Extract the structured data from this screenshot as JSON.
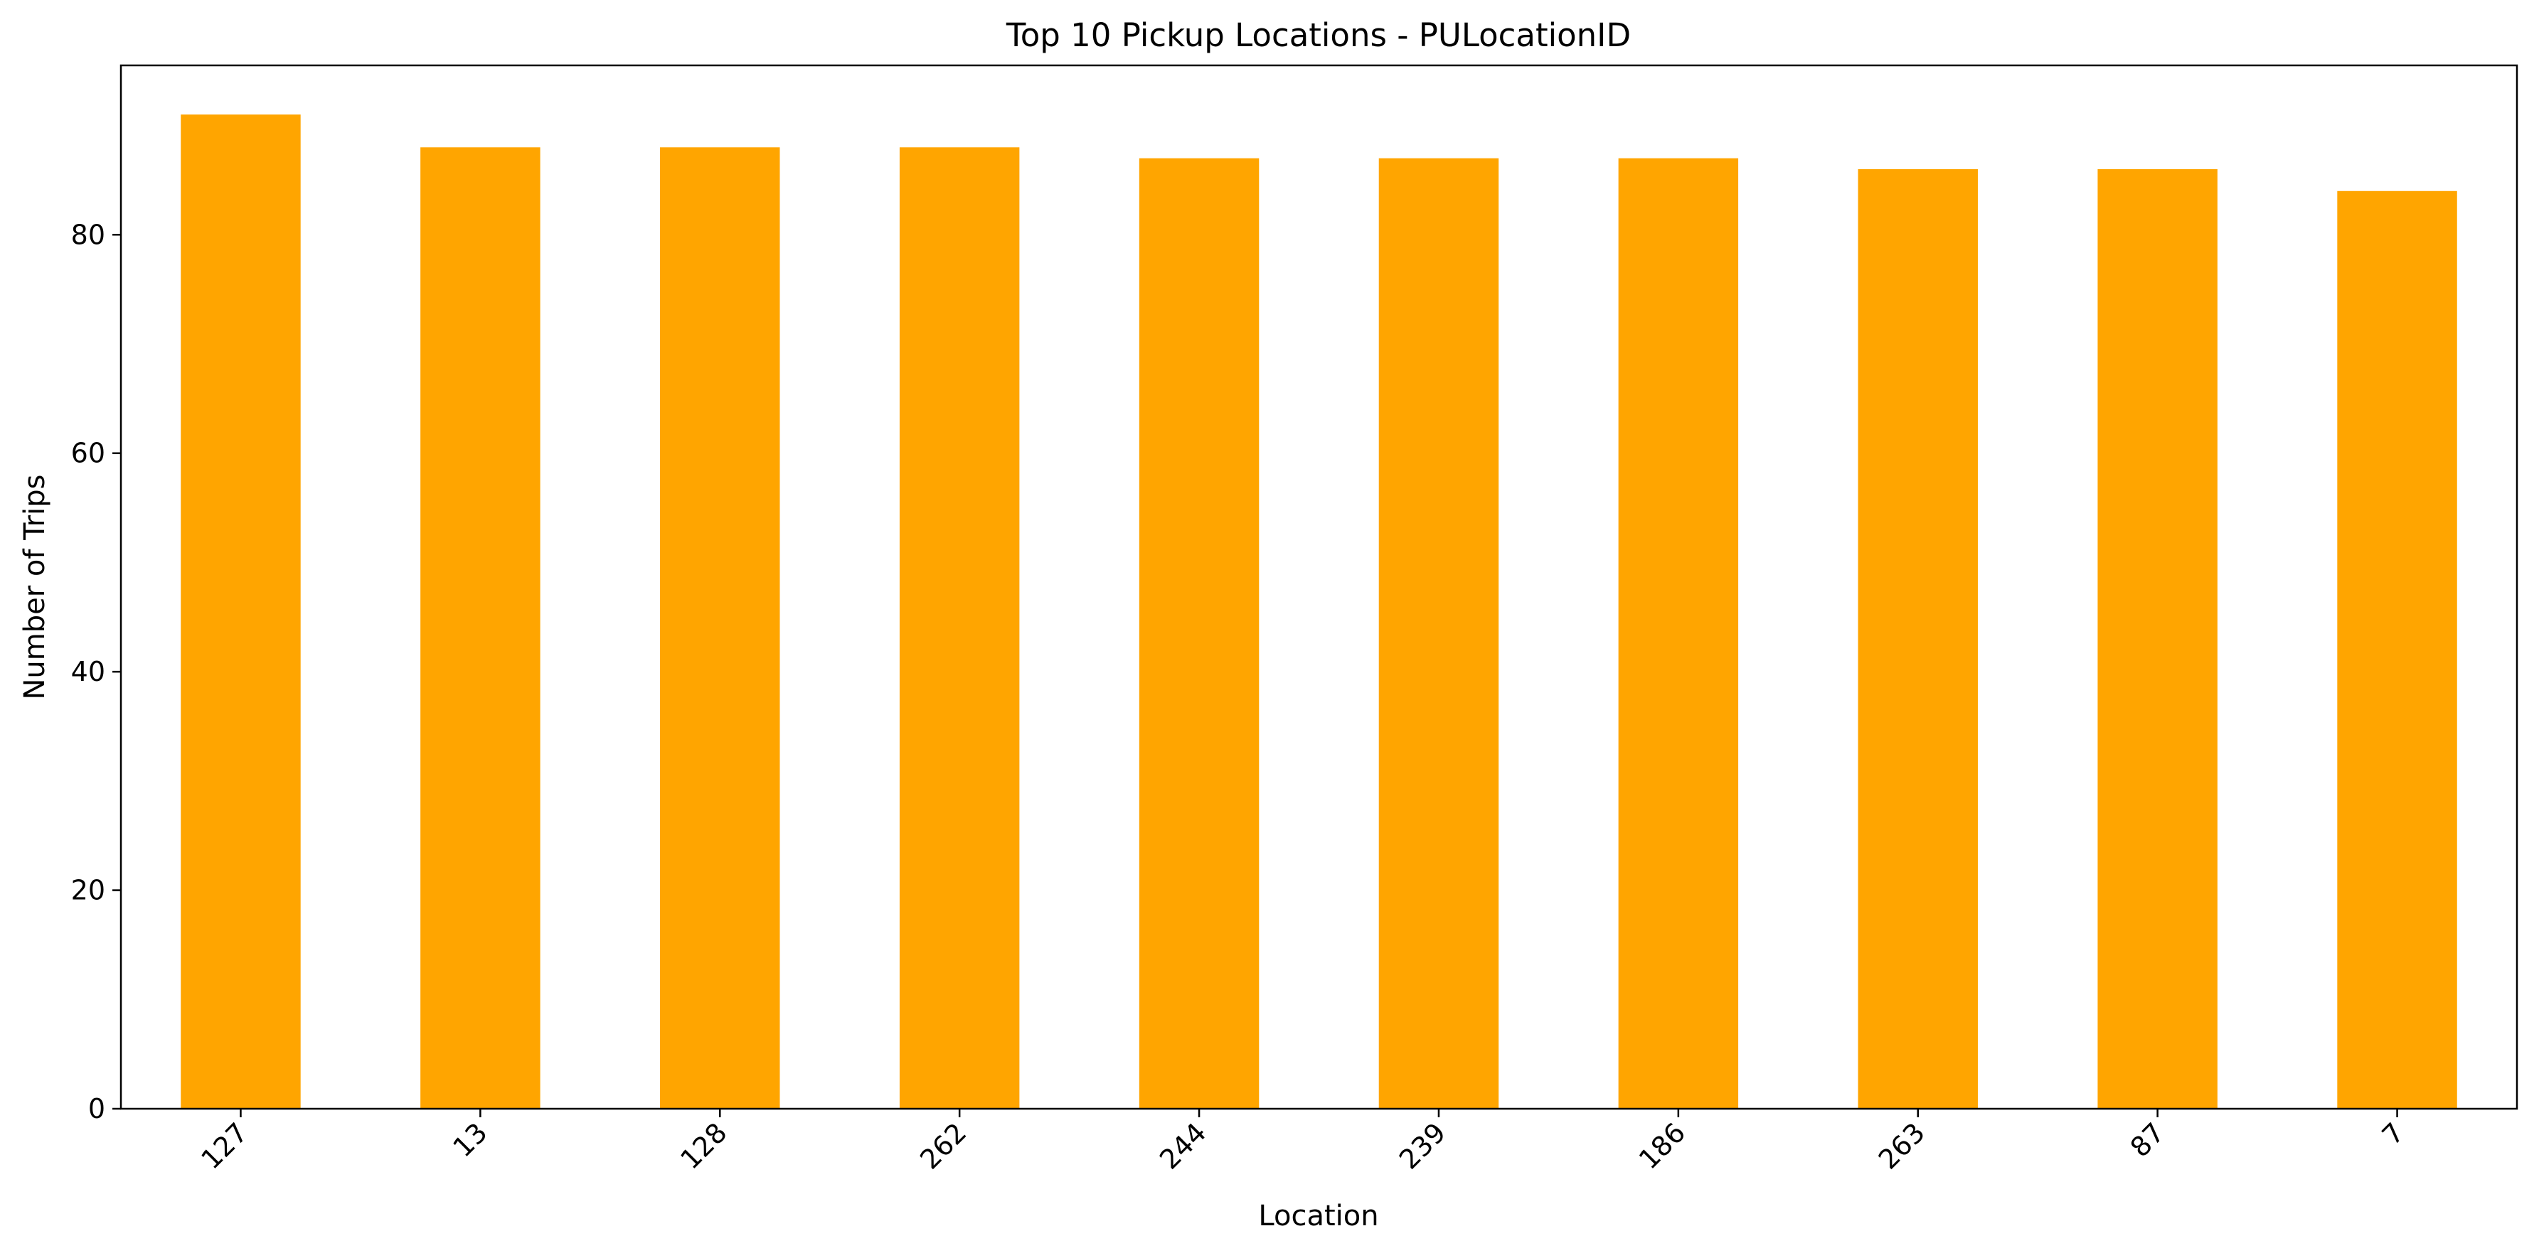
{
  "chart_data": {
    "type": "bar",
    "title": "Top 10 Pickup Locations - PULocationID",
    "xlabel": "Location",
    "ylabel": "Number of Trips",
    "categories": [
      "127",
      "13",
      "128",
      "262",
      "244",
      "239",
      "186",
      "263",
      "87",
      "7"
    ],
    "values": [
      91,
      88,
      88,
      88,
      87,
      87,
      87,
      86,
      86,
      84
    ],
    "ylim": [
      0,
      95.5
    ],
    "yticks": [
      "0",
      "20",
      "40",
      "60",
      "80"
    ],
    "bar_color": "#FFA500",
    "grid": false,
    "legend": "none",
    "xtick_rotation": "45 degrees"
  }
}
